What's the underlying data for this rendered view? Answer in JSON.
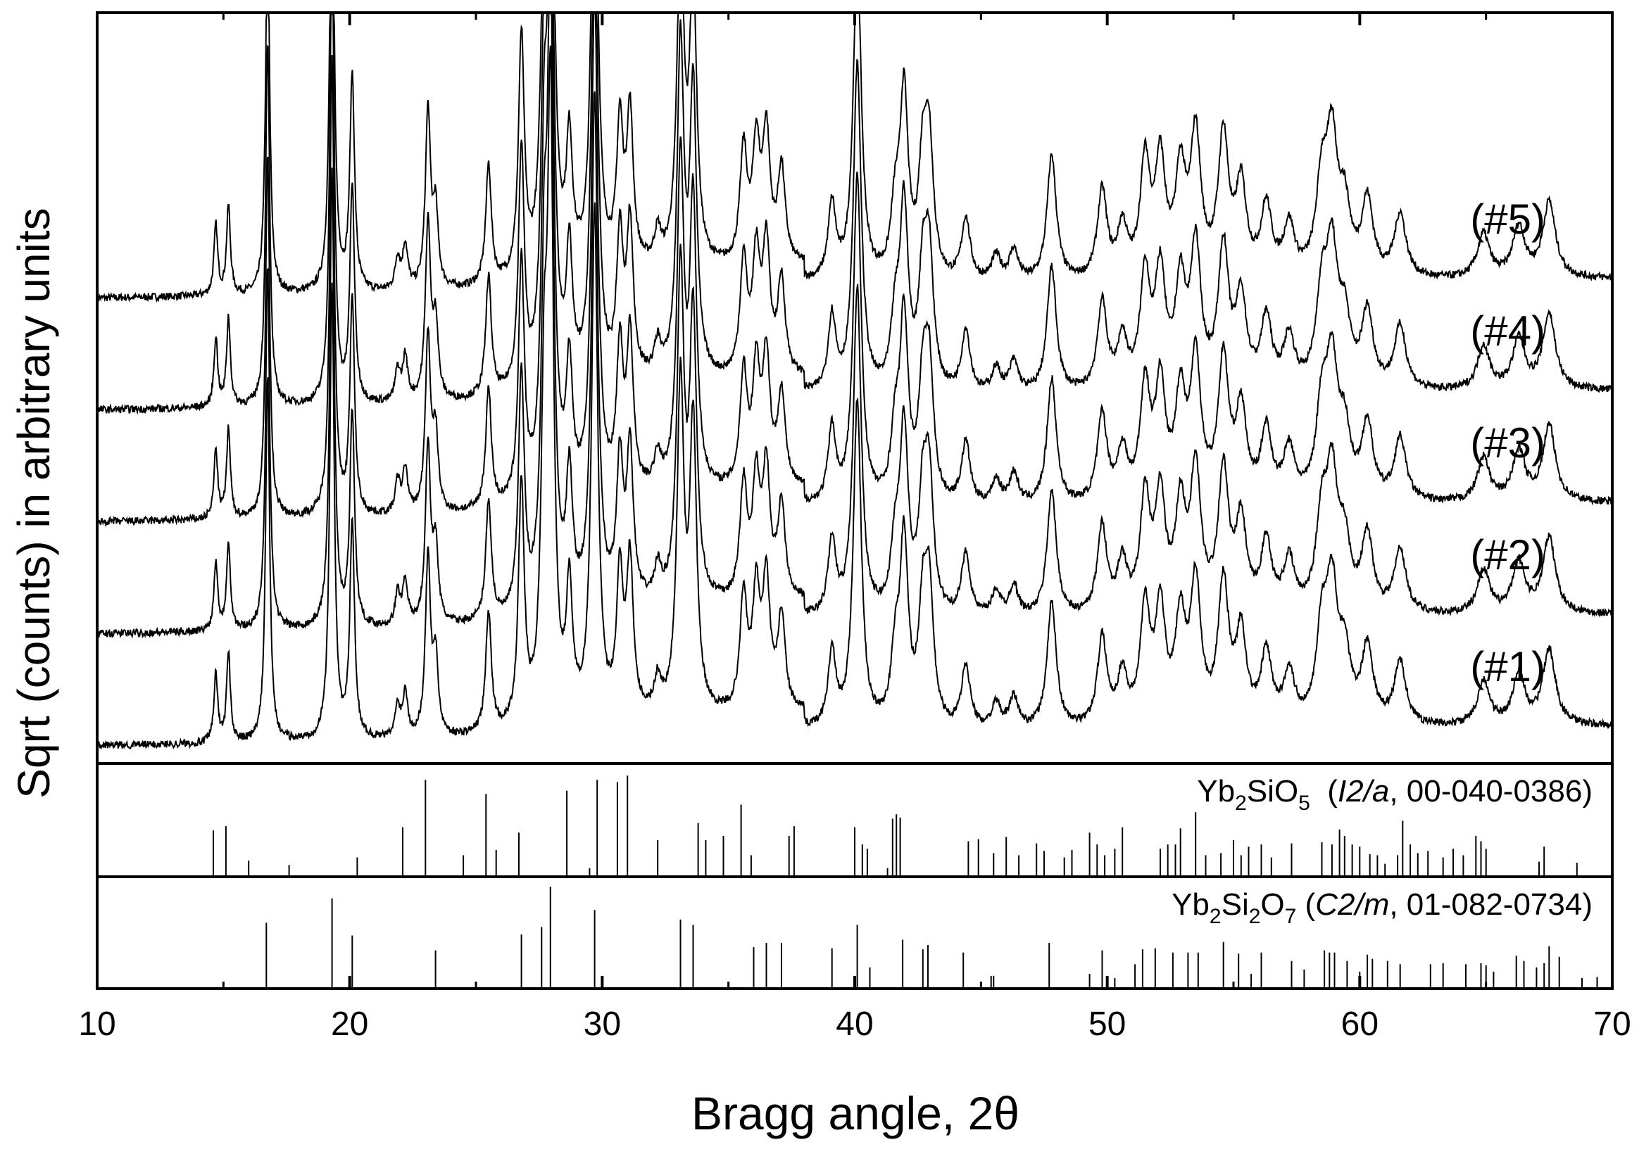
{
  "chart_data": {
    "type": "line",
    "xlabel": "Bragg angle, 2θ",
    "ylabel": "Sqrt (counts) in arbitrary units",
    "xlim": [
      10,
      70
    ],
    "x_ticks": [
      "10",
      "20",
      "30",
      "40",
      "50",
      "60",
      "70"
    ],
    "x_tick_values": [
      10,
      20,
      30,
      40,
      50,
      60,
      70
    ],
    "y_ticks_shown": false,
    "grid": false,
    "peaks": [
      {
        "x": 14.7,
        "h": 0.11
      },
      {
        "x": 15.2,
        "h": 0.14
      },
      {
        "x": 16.75,
        "h": 0.58
      },
      {
        "x": 19.3,
        "h": 0.72
      },
      {
        "x": 20.1,
        "h": 0.34
      },
      {
        "x": 21.9,
        "h": 0.05
      },
      {
        "x": 22.2,
        "h": 0.07
      },
      {
        "x": 23.1,
        "h": 0.28
      },
      {
        "x": 23.4,
        "h": 0.12
      },
      {
        "x": 25.5,
        "h": 0.19
      },
      {
        "x": 26.8,
        "h": 0.38
      },
      {
        "x": 27.7,
        "h": 0.45
      },
      {
        "x": 27.95,
        "h": 0.95
      },
      {
        "x": 28.7,
        "h": 0.2
      },
      {
        "x": 29.7,
        "h": 0.8
      },
      {
        "x": 30.7,
        "h": 0.22
      },
      {
        "x": 31.1,
        "h": 0.24
      },
      {
        "x": 32.2,
        "h": 0.05
      },
      {
        "x": 33.1,
        "h": 0.52
      },
      {
        "x": 33.6,
        "h": 0.45
      },
      {
        "x": 35.6,
        "h": 0.18
      },
      {
        "x": 36.1,
        "h": 0.18
      },
      {
        "x": 36.5,
        "h": 0.2
      },
      {
        "x": 37.1,
        "h": 0.15
      },
      {
        "x": 39.1,
        "h": 0.12
      },
      {
        "x": 40.1,
        "h": 0.52
      },
      {
        "x": 41.6,
        "h": 0.1
      },
      {
        "x": 41.95,
        "h": 0.29
      },
      {
        "x": 42.7,
        "h": 0.17
      },
      {
        "x": 42.95,
        "h": 0.2
      },
      {
        "x": 44.4,
        "h": 0.1
      },
      {
        "x": 45.6,
        "h": 0.04
      },
      {
        "x": 46.3,
        "h": 0.05
      },
      {
        "x": 47.8,
        "h": 0.2
      },
      {
        "x": 49.8,
        "h": 0.14
      },
      {
        "x": 50.6,
        "h": 0.08
      },
      {
        "x": 51.5,
        "h": 0.18
      },
      {
        "x": 52.1,
        "h": 0.18
      },
      {
        "x": 52.9,
        "h": 0.16
      },
      {
        "x": 53.5,
        "h": 0.22
      },
      {
        "x": 54.6,
        "h": 0.22
      },
      {
        "x": 55.3,
        "h": 0.14
      },
      {
        "x": 56.3,
        "h": 0.11
      },
      {
        "x": 57.2,
        "h": 0.08
      },
      {
        "x": 58.5,
        "h": 0.14
      },
      {
        "x": 58.9,
        "h": 0.2
      },
      {
        "x": 59.4,
        "h": 0.1
      },
      {
        "x": 60.3,
        "h": 0.12
      },
      {
        "x": 61.6,
        "h": 0.1
      },
      {
        "x": 64.9,
        "h": 0.07
      },
      {
        "x": 66.3,
        "h": 0.08
      },
      {
        "x": 67.5,
        "h": 0.12
      }
    ],
    "series": [
      {
        "name": "(#5)",
        "label": "(#5)",
        "offset": 4
      },
      {
        "name": "(#4)",
        "label": "(#4)",
        "offset": 3
      },
      {
        "name": "(#3)",
        "label": "(#3)",
        "offset": 2
      },
      {
        "name": "(#2)",
        "label": "(#2)",
        "offset": 1
      },
      {
        "name": "(#1)",
        "label": "(#1)",
        "offset": 0
      }
    ],
    "reference_patterns": [
      {
        "label_parts": [
          "Yb",
          "2",
          "SiO",
          "5",
          "(",
          "I2/a",
          ", 00-040-0386)"
        ],
        "sticks": [
          [
            14.6,
            0.43
          ],
          [
            15.1,
            0.47
          ],
          [
            16.0,
            0.15
          ],
          [
            17.6,
            0.11
          ],
          [
            20.3,
            0.18
          ],
          [
            22.1,
            0.46
          ],
          [
            23.0,
            0.9
          ],
          [
            24.5,
            0.2
          ],
          [
            25.4,
            0.77
          ],
          [
            25.8,
            0.25
          ],
          [
            26.7,
            0.41
          ],
          [
            28.6,
            0.8
          ],
          [
            29.5,
            0.08
          ],
          [
            29.8,
            0.9
          ],
          [
            30.6,
            0.88
          ],
          [
            31.0,
            0.94
          ],
          [
            32.2,
            0.34
          ],
          [
            33.8,
            0.5
          ],
          [
            34.1,
            0.34
          ],
          [
            34.8,
            0.38
          ],
          [
            35.5,
            0.67
          ],
          [
            35.9,
            0.2
          ],
          [
            37.4,
            0.38
          ],
          [
            37.6,
            0.47
          ],
          [
            40.0,
            0.46
          ],
          [
            40.3,
            0.3
          ],
          [
            40.5,
            0.26
          ],
          [
            41.3,
            0.08
          ],
          [
            41.5,
            0.54
          ],
          [
            41.65,
            0.58
          ],
          [
            41.8,
            0.55
          ],
          [
            44.5,
            0.33
          ],
          [
            44.9,
            0.35
          ],
          [
            45.5,
            0.22
          ],
          [
            46.0,
            0.37
          ],
          [
            46.5,
            0.2
          ],
          [
            47.2,
            0.31
          ],
          [
            47.5,
            0.24
          ],
          [
            48.3,
            0.18
          ],
          [
            48.6,
            0.25
          ],
          [
            49.3,
            0.41
          ],
          [
            49.6,
            0.3
          ],
          [
            49.9,
            0.2
          ],
          [
            50.3,
            0.26
          ],
          [
            50.6,
            0.46
          ],
          [
            52.1,
            0.26
          ],
          [
            52.4,
            0.3
          ],
          [
            52.7,
            0.3
          ],
          [
            52.9,
            0.45
          ],
          [
            53.5,
            0.6
          ],
          [
            53.9,
            0.2
          ],
          [
            54.5,
            0.22
          ],
          [
            55.0,
            0.34
          ],
          [
            55.3,
            0.2
          ],
          [
            55.6,
            0.28
          ],
          [
            56.1,
            0.3
          ],
          [
            56.5,
            0.18
          ],
          [
            57.3,
            0.31
          ],
          [
            58.5,
            0.32
          ],
          [
            58.9,
            0.3
          ],
          [
            59.2,
            0.44
          ],
          [
            59.4,
            0.38
          ],
          [
            59.7,
            0.3
          ],
          [
            60.0,
            0.28
          ],
          [
            60.4,
            0.21
          ],
          [
            60.7,
            0.2
          ],
          [
            61.0,
            0.12
          ],
          [
            61.5,
            0.2
          ],
          [
            61.7,
            0.52
          ],
          [
            62.0,
            0.3
          ],
          [
            62.3,
            0.22
          ],
          [
            62.7,
            0.24
          ],
          [
            63.3,
            0.18
          ],
          [
            63.7,
            0.26
          ],
          [
            64.1,
            0.2
          ],
          [
            64.6,
            0.38
          ],
          [
            64.8,
            0.33
          ],
          [
            65.0,
            0.26
          ],
          [
            67.1,
            0.14
          ],
          [
            67.3,
            0.28
          ],
          [
            68.6,
            0.13
          ]
        ]
      },
      {
        "label_parts": [
          "Yb",
          "2",
          "Si",
          "2",
          "O",
          "7",
          "(",
          "C2/m",
          ", 01-082-0734)"
        ],
        "sticks": [
          [
            16.7,
            0.62
          ],
          [
            19.3,
            0.85
          ],
          [
            20.1,
            0.5
          ],
          [
            23.4,
            0.36
          ],
          [
            26.8,
            0.51
          ],
          [
            27.6,
            0.58
          ],
          [
            27.95,
            0.96
          ],
          [
            29.7,
            0.74
          ],
          [
            33.1,
            0.65
          ],
          [
            33.6,
            0.6
          ],
          [
            36.0,
            0.39
          ],
          [
            36.5,
            0.43
          ],
          [
            37.1,
            0.43
          ],
          [
            39.1,
            0.38
          ],
          [
            40.1,
            0.6
          ],
          [
            40.6,
            0.2
          ],
          [
            41.9,
            0.46
          ],
          [
            42.7,
            0.37
          ],
          [
            42.9,
            0.41
          ],
          [
            44.3,
            0.34
          ],
          [
            45.4,
            0.12
          ],
          [
            45.5,
            0.12
          ],
          [
            47.7,
            0.43
          ],
          [
            49.3,
            0.14
          ],
          [
            49.8,
            0.36
          ],
          [
            50.3,
            0.1
          ],
          [
            51.1,
            0.23
          ],
          [
            51.4,
            0.37
          ],
          [
            51.9,
            0.38
          ],
          [
            52.6,
            0.34
          ],
          [
            53.2,
            0.34
          ],
          [
            53.6,
            0.34
          ],
          [
            54.6,
            0.44
          ],
          [
            55.2,
            0.33
          ],
          [
            55.7,
            0.14
          ],
          [
            56.1,
            0.34
          ],
          [
            57.3,
            0.26
          ],
          [
            57.8,
            0.18
          ],
          [
            58.6,
            0.36
          ],
          [
            58.8,
            0.34
          ],
          [
            59.0,
            0.34
          ],
          [
            59.5,
            0.26
          ],
          [
            60.0,
            0.16
          ],
          [
            60.3,
            0.32
          ],
          [
            60.5,
            0.28
          ],
          [
            61.1,
            0.26
          ],
          [
            61.6,
            0.23
          ],
          [
            62.8,
            0.23
          ],
          [
            63.3,
            0.24
          ],
          [
            64.2,
            0.23
          ],
          [
            64.8,
            0.24
          ],
          [
            65.0,
            0.22
          ],
          [
            65.3,
            0.16
          ],
          [
            66.2,
            0.31
          ],
          [
            66.5,
            0.26
          ],
          [
            67.0,
            0.2
          ],
          [
            67.3,
            0.24
          ],
          [
            67.5,
            0.4
          ],
          [
            67.9,
            0.3
          ],
          [
            68.8,
            0.1
          ],
          [
            69.4,
            0.11
          ]
        ]
      }
    ]
  }
}
